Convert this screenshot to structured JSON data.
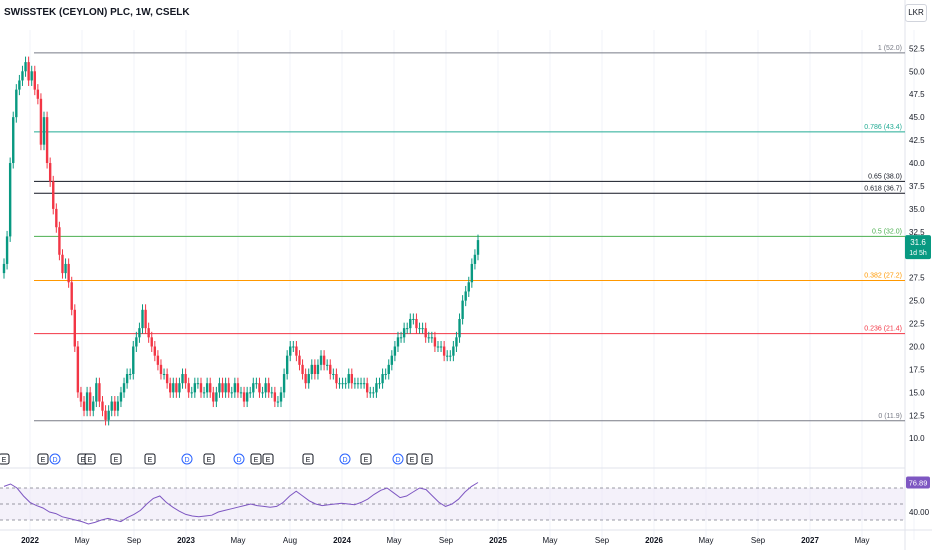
{
  "header": {
    "title": "SWISSTEK (CEYLON) PLC, 1W, CSELK",
    "currency": "LKR"
  },
  "price_label": {
    "value": "31.6",
    "countdown": "1d 5h"
  },
  "rsi_label": "76.89",
  "event_markers": [
    "E",
    "E",
    "D",
    "E",
    "E",
    "E",
    "E",
    "D",
    "E",
    "D",
    "E",
    "E",
    "E",
    "D",
    "E",
    "D",
    "E",
    "E"
  ],
  "chart_data": [
    {
      "type": "candlestick",
      "ylim": [
        8.5,
        54.5
      ],
      "y_ticks": [
        "52.5",
        "50.0",
        "47.5",
        "45.0",
        "42.5",
        "40.0",
        "37.5",
        "35.0",
        "32.5",
        "30.0",
        "27.5",
        "25.0",
        "22.5",
        "20.0",
        "17.5",
        "15.0",
        "12.5",
        "10.0"
      ],
      "x_ticks": [
        "2022",
        "May",
        "Sep",
        "2023",
        "May",
        "Aug",
        "2024",
        "May",
        "Sep",
        "2025",
        "May",
        "Sep",
        "2026",
        "May",
        "Sep",
        "2027",
        "May"
      ],
      "fib_levels": [
        {
          "label": "1 (52.0)",
          "value": 52.0,
          "color": "#787b86"
        },
        {
          "label": "0.786 (43.4)",
          "value": 43.4,
          "color": "#22ab94"
        },
        {
          "label": "0.65 (38.0)",
          "value": 38.0,
          "color": "#131722"
        },
        {
          "label": "0.618 (36.7)",
          "value": 36.7,
          "color": "#131722"
        },
        {
          "label": "0.5 (32.0)",
          "value": 32.0,
          "color": "#4caf50"
        },
        {
          "label": "0.382 (27.2)",
          "value": 27.2,
          "color": "#ff9800"
        },
        {
          "label": "0.236 (21.4)",
          "value": 21.4,
          "color": "#f23645"
        },
        {
          "label": "0 (11.9)",
          "value": 11.9,
          "color": "#787b86"
        }
      ],
      "weekly_close": [
        29,
        32,
        40,
        45,
        48,
        49,
        50,
        51,
        49,
        50,
        48,
        47,
        42,
        45,
        40,
        38,
        35,
        33,
        30,
        28,
        29,
        27,
        24,
        20,
        15,
        14,
        13,
        15,
        13,
        14,
        16,
        14,
        13,
        12,
        13,
        14,
        13,
        14,
        15,
        16,
        17,
        17,
        20,
        21,
        22,
        24,
        22,
        21,
        20,
        19,
        18,
        17,
        17,
        16,
        15,
        16,
        15,
        16,
        17,
        16,
        15,
        15,
        16,
        16,
        15,
        15,
        16,
        15,
        14,
        15,
        16,
        15,
        16,
        15,
        15,
        16,
        15,
        15,
        14,
        15,
        15,
        16,
        16,
        15,
        15,
        16,
        15,
        15,
        14,
        14,
        15,
        17,
        19,
        20,
        20,
        19,
        18,
        17,
        16,
        17,
        18,
        17,
        18,
        19,
        18,
        18,
        17,
        17,
        16,
        16,
        16,
        16,
        17,
        16,
        16,
        16,
        16,
        16,
        15,
        15,
        15,
        16,
        16,
        17,
        17,
        18,
        19,
        20,
        21,
        21,
        22,
        22,
        23,
        23,
        22,
        22,
        22,
        21,
        21,
        21,
        20,
        20,
        20,
        19,
        19,
        19,
        20,
        21,
        23,
        25,
        26,
        27,
        29,
        30,
        31.6
      ],
      "rsi": {
        "label": "76.89",
        "levels": [
          70,
          50,
          30
        ],
        "values": [
          72,
          75,
          70,
          60,
          52,
          48,
          45,
          40,
          38,
          34,
          32,
          30,
          28,
          25,
          27,
          30,
          32,
          30,
          28,
          33,
          37,
          42,
          50,
          57,
          60,
          52,
          46,
          41,
          37,
          35,
          34,
          35,
          36,
          40,
          42,
          44,
          46,
          48,
          50,
          48,
          47,
          46,
          47,
          52,
          60,
          66,
          60,
          54,
          50,
          48,
          49,
          50,
          51,
          50,
          49,
          52,
          56,
          62,
          67,
          70,
          64,
          58,
          60,
          65,
          70,
          68,
          60,
          52,
          47,
          50,
          56,
          65,
          72,
          76.89
        ]
      }
    }
  ]
}
